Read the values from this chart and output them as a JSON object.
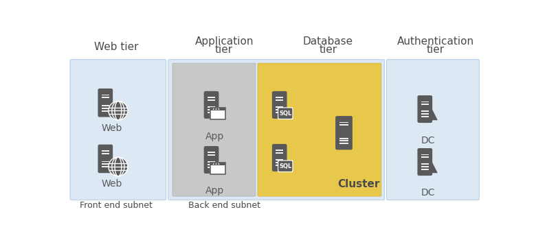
{
  "fig_width": 7.8,
  "fig_height": 3.63,
  "bg_color": "#ffffff",
  "title_color": "#4a4a4a",
  "zone_blue": "#dce9f5",
  "zone_gray": "#c8c8c8",
  "zone_yellow": "#e8c84a",
  "icon_color": "#595959",
  "subnet_color": "#4a4a4a",
  "cluster_text_color": "#4a4a4a",
  "tier_titles": [
    [
      "Web tier",
      92,
      32
    ],
    [
      "Application\ntier",
      295,
      25
    ],
    [
      "Database\ntier",
      490,
      25
    ],
    [
      "Authentication\ntier",
      692,
      25
    ]
  ],
  "subnet_labels": [
    [
      "Front end subnet",
      92,
      330
    ],
    [
      "Back end subnet",
      295,
      330
    ]
  ]
}
